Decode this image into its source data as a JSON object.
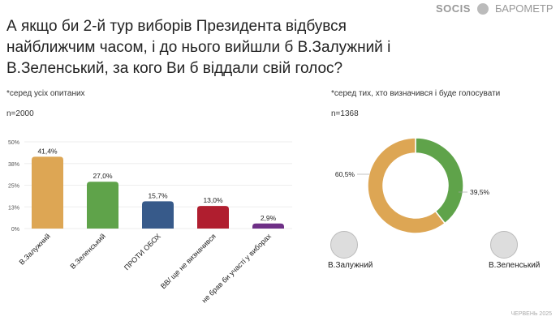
{
  "title": "А якщо би 2-й тур виборів Президента відбувся найближчим часом, і до нього вийшли б В.Залужний і В.Зеленський, за кого Ви б віддали свій голос?",
  "logo": {
    "brand": "SOCIS",
    "product": "БАРОМЕТР"
  },
  "footer": "ЧЕРВЕНЬ 2025",
  "chart_data": [
    {
      "type": "bar",
      "note": "*серед усіх опитаних",
      "n": "n=2000",
      "categories": [
        "В.Залужний",
        "В.Зеленський",
        "ПРОТИ ОБОХ",
        "ВВ/ ще не визначився",
        "не брав би участі у виборах"
      ],
      "values": [
        41.4,
        27.0,
        15.7,
        13.0,
        2.9
      ],
      "labels": [
        "41,4%",
        "27,0%",
        "15,7%",
        "13,0%",
        "2,9%"
      ],
      "colors": [
        "#DDA654",
        "#5FA34A",
        "#375A8A",
        "#B01E2F",
        "#6E2F86"
      ],
      "yticks": [
        "0%",
        "13%",
        "25%",
        "38%",
        "50%"
      ],
      "ylim": [
        0,
        50
      ],
      "grid": true
    },
    {
      "type": "pie",
      "donut": true,
      "note": "*серед тих, хто визначився і буде голосувати",
      "n": "n=1368",
      "categories": [
        "В.Залужний",
        "В.Зеленський"
      ],
      "values": [
        60.5,
        39.5
      ],
      "labels": [
        "60,5%",
        "39,5%"
      ],
      "colors": [
        "#DDA654",
        "#5FA34A"
      ]
    }
  ]
}
